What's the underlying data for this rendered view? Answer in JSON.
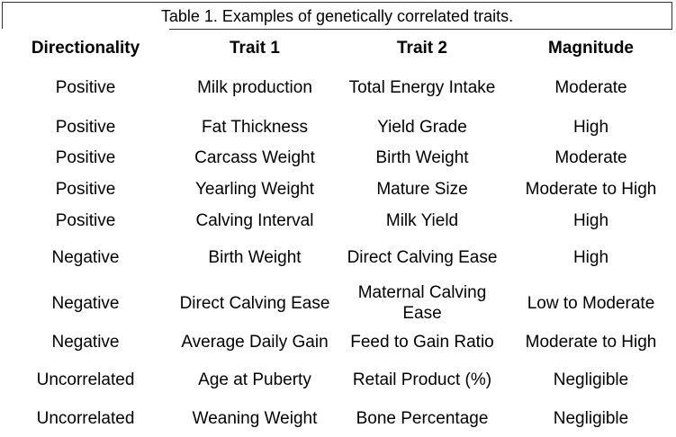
{
  "table": {
    "caption": "Table 1. Examples of genetically correlated traits.",
    "headers": {
      "directionality": "Directionality",
      "trait1": "Trait 1",
      "trait2": "Trait 2",
      "magnitude": "Magnitude"
    },
    "rows": [
      {
        "directionality": "Positive",
        "trait1": "Milk production",
        "trait2": "Total Energy Intake",
        "magnitude": "Moderate"
      },
      {
        "directionality": "Positive",
        "trait1": "Fat Thickness",
        "trait2": "Yield Grade",
        "magnitude": "High"
      },
      {
        "directionality": "Positive",
        "trait1": "Carcass Weight",
        "trait2": "Birth Weight",
        "magnitude": "Moderate"
      },
      {
        "directionality": "Positive",
        "trait1": "Yearling Weight",
        "trait2": "Mature Size",
        "magnitude": "Moderate to High"
      },
      {
        "directionality": "Positive",
        "trait1": "Calving Interval",
        "trait2": "Milk Yield",
        "magnitude": "High"
      },
      {
        "directionality": "Negative",
        "trait1": "Birth Weight",
        "trait2": "Direct Calving Ease",
        "magnitude": "High"
      },
      {
        "directionality": "Negative",
        "trait1": "Direct Calving Ease",
        "trait2": "Maternal Calving Ease",
        "magnitude": "Low to Moderate"
      },
      {
        "directionality": "Negative",
        "trait1": "Average Daily Gain",
        "trait2": "Feed to Gain Ratio",
        "magnitude": "Moderate to High"
      },
      {
        "directionality": "Uncorrelated",
        "trait1": "Age at Puberty",
        "trait2": "Retail Product (%)",
        "magnitude": "Negligible"
      },
      {
        "directionality": "Uncorrelated",
        "trait1": "Weaning Weight",
        "trait2": "Bone Percentage",
        "magnitude": "Negligible"
      }
    ]
  }
}
